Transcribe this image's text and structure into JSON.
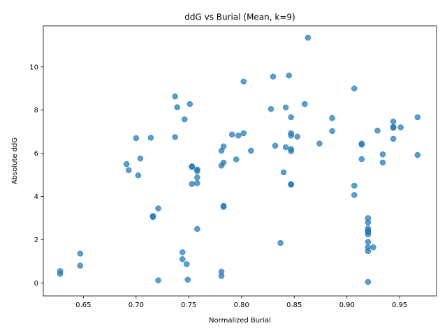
{
  "chart_data": {
    "type": "scatter",
    "title": "ddG vs Burial (Mean, k=9)",
    "xlabel": "Normalized Burial",
    "ylabel": "Absolute ddG",
    "xlim": [
      0.612,
      0.985
    ],
    "ylim": [
      -0.6,
      11.9
    ],
    "xticks": [
      0.65,
      0.7,
      0.75,
      0.8,
      0.85,
      0.9,
      0.95
    ],
    "xtick_labels": [
      "0.65",
      "0.70",
      "0.75",
      "0.80",
      "0.85",
      "0.90",
      "0.95"
    ],
    "yticks": [
      0,
      2,
      4,
      6,
      8,
      10
    ],
    "ytick_labels": [
      "0",
      "2",
      "4",
      "6",
      "8",
      "10"
    ],
    "grid": false,
    "legend": "none",
    "marker_color": "#1f77b4",
    "points": [
      {
        "x": 0.628,
        "y": 0.55
      },
      {
        "x": 0.628,
        "y": 0.42
      },
      {
        "x": 0.647,
        "y": 1.36
      },
      {
        "x": 0.647,
        "y": 0.8
      },
      {
        "x": 0.691,
        "y": 5.5
      },
      {
        "x": 0.693,
        "y": 5.22
      },
      {
        "x": 0.7,
        "y": 6.7
      },
      {
        "x": 0.702,
        "y": 4.98
      },
      {
        "x": 0.704,
        "y": 5.76
      },
      {
        "x": 0.714,
        "y": 6.72
      },
      {
        "x": 0.716,
        "y": 3.1
      },
      {
        "x": 0.716,
        "y": 3.05
      },
      {
        "x": 0.721,
        "y": 3.45
      },
      {
        "x": 0.721,
        "y": 0.12
      },
      {
        "x": 0.737,
        "y": 8.63
      },
      {
        "x": 0.737,
        "y": 6.75
      },
      {
        "x": 0.739,
        "y": 8.13
      },
      {
        "x": 0.744,
        "y": 1.42
      },
      {
        "x": 0.744,
        "y": 1.1
      },
      {
        "x": 0.746,
        "y": 7.57
      },
      {
        "x": 0.748,
        "y": 0.87
      },
      {
        "x": 0.749,
        "y": 0.15
      },
      {
        "x": 0.751,
        "y": 8.28
      },
      {
        "x": 0.753,
        "y": 5.4
      },
      {
        "x": 0.753,
        "y": 5.37
      },
      {
        "x": 0.753,
        "y": 4.58
      },
      {
        "x": 0.758,
        "y": 5.25
      },
      {
        "x": 0.758,
        "y": 5.18
      },
      {
        "x": 0.758,
        "y": 4.88
      },
      {
        "x": 0.758,
        "y": 4.62
      },
      {
        "x": 0.758,
        "y": 2.5
      },
      {
        "x": 0.781,
        "y": 6.12
      },
      {
        "x": 0.781,
        "y": 5.43
      },
      {
        "x": 0.781,
        "y": 0.52
      },
      {
        "x": 0.781,
        "y": 0.32
      },
      {
        "x": 0.783,
        "y": 6.32
      },
      {
        "x": 0.783,
        "y": 5.57
      },
      {
        "x": 0.783,
        "y": 3.57
      },
      {
        "x": 0.783,
        "y": 3.52
      },
      {
        "x": 0.791,
        "y": 6.87
      },
      {
        "x": 0.795,
        "y": 5.72
      },
      {
        "x": 0.797,
        "y": 6.82
      },
      {
        "x": 0.802,
        "y": 9.32
      },
      {
        "x": 0.802,
        "y": 6.93
      },
      {
        "x": 0.809,
        "y": 6.12
      },
      {
        "x": 0.828,
        "y": 8.05
      },
      {
        "x": 0.83,
        "y": 9.55
      },
      {
        "x": 0.832,
        "y": 6.35
      },
      {
        "x": 0.837,
        "y": 1.85
      },
      {
        "x": 0.84,
        "y": 5.12
      },
      {
        "x": 0.842,
        "y": 8.12
      },
      {
        "x": 0.842,
        "y": 6.28
      },
      {
        "x": 0.845,
        "y": 9.6
      },
      {
        "x": 0.847,
        "y": 7.67
      },
      {
        "x": 0.847,
        "y": 6.93
      },
      {
        "x": 0.847,
        "y": 6.82
      },
      {
        "x": 0.847,
        "y": 6.2
      },
      {
        "x": 0.847,
        "y": 6.1
      },
      {
        "x": 0.847,
        "y": 4.57
      },
      {
        "x": 0.847,
        "y": 4.55
      },
      {
        "x": 0.853,
        "y": 6.77
      },
      {
        "x": 0.86,
        "y": 8.28
      },
      {
        "x": 0.863,
        "y": 11.35
      },
      {
        "x": 0.874,
        "y": 6.45
      },
      {
        "x": 0.886,
        "y": 7.63
      },
      {
        "x": 0.886,
        "y": 7.03
      },
      {
        "x": 0.907,
        "y": 9.0
      },
      {
        "x": 0.907,
        "y": 4.5
      },
      {
        "x": 0.907,
        "y": 4.07
      },
      {
        "x": 0.914,
        "y": 6.45
      },
      {
        "x": 0.914,
        "y": 6.4
      },
      {
        "x": 0.914,
        "y": 5.73
      },
      {
        "x": 0.92,
        "y": 3.0
      },
      {
        "x": 0.92,
        "y": 2.8
      },
      {
        "x": 0.92,
        "y": 2.52
      },
      {
        "x": 0.92,
        "y": 2.42
      },
      {
        "x": 0.92,
        "y": 2.35
      },
      {
        "x": 0.92,
        "y": 2.25
      },
      {
        "x": 0.92,
        "y": 1.9
      },
      {
        "x": 0.92,
        "y": 1.65
      },
      {
        "x": 0.92,
        "y": 1.47
      },
      {
        "x": 0.92,
        "y": 0.05
      },
      {
        "x": 0.925,
        "y": 1.65
      },
      {
        "x": 0.929,
        "y": 7.05
      },
      {
        "x": 0.934,
        "y": 5.95
      },
      {
        "x": 0.934,
        "y": 5.57
      },
      {
        "x": 0.944,
        "y": 7.47
      },
      {
        "x": 0.944,
        "y": 7.22
      },
      {
        "x": 0.944,
        "y": 7.18
      },
      {
        "x": 0.944,
        "y": 6.67
      },
      {
        "x": 0.951,
        "y": 7.2
      },
      {
        "x": 0.967,
        "y": 7.67
      },
      {
        "x": 0.967,
        "y": 5.92
      }
    ]
  }
}
